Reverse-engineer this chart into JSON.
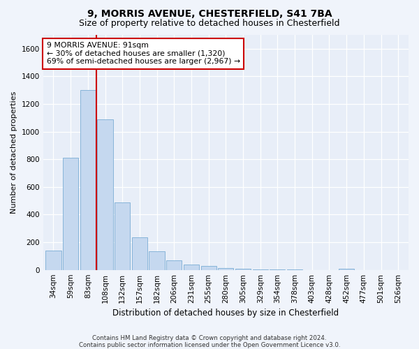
{
  "title1": "9, MORRIS AVENUE, CHESTERFIELD, S41 7BA",
  "title2": "Size of property relative to detached houses in Chesterfield",
  "xlabel": "Distribution of detached houses by size in Chesterfield",
  "ylabel": "Number of detached properties",
  "categories": [
    "34sqm",
    "59sqm",
    "83sqm",
    "108sqm",
    "132sqm",
    "157sqm",
    "182sqm",
    "206sqm",
    "231sqm",
    "255sqm",
    "280sqm",
    "305sqm",
    "329sqm",
    "354sqm",
    "378sqm",
    "403sqm",
    "428sqm",
    "452sqm",
    "477sqm",
    "501sqm",
    "526sqm"
  ],
  "values": [
    140,
    810,
    1300,
    1090,
    490,
    235,
    135,
    70,
    40,
    28,
    15,
    8,
    3,
    2,
    1,
    0,
    0,
    10,
    0,
    0,
    0
  ],
  "bar_color": "#c5d8ef",
  "bar_edge_color": "#7aadd4",
  "vline_color": "#cc0000",
  "annotation_text": "9 MORRIS AVENUE: 91sqm\n← 30% of detached houses are smaller (1,320)\n69% of semi-detached houses are larger (2,967) →",
  "annotation_box_color": "#ffffff",
  "annotation_box_edge": "#cc0000",
  "ylim": [
    0,
    1700
  ],
  "yticks": [
    0,
    200,
    400,
    600,
    800,
    1000,
    1200,
    1400,
    1600
  ],
  "footer1": "Contains HM Land Registry data © Crown copyright and database right 2024.",
  "footer2": "Contains public sector information licensed under the Open Government Licence v3.0.",
  "bg_color": "#f0f4fb",
  "plot_bg_color": "#e8eef8",
  "title1_fontsize": 10,
  "title2_fontsize": 9,
  "xlabel_fontsize": 8.5,
  "ylabel_fontsize": 8,
  "tick_fontsize": 7.5
}
